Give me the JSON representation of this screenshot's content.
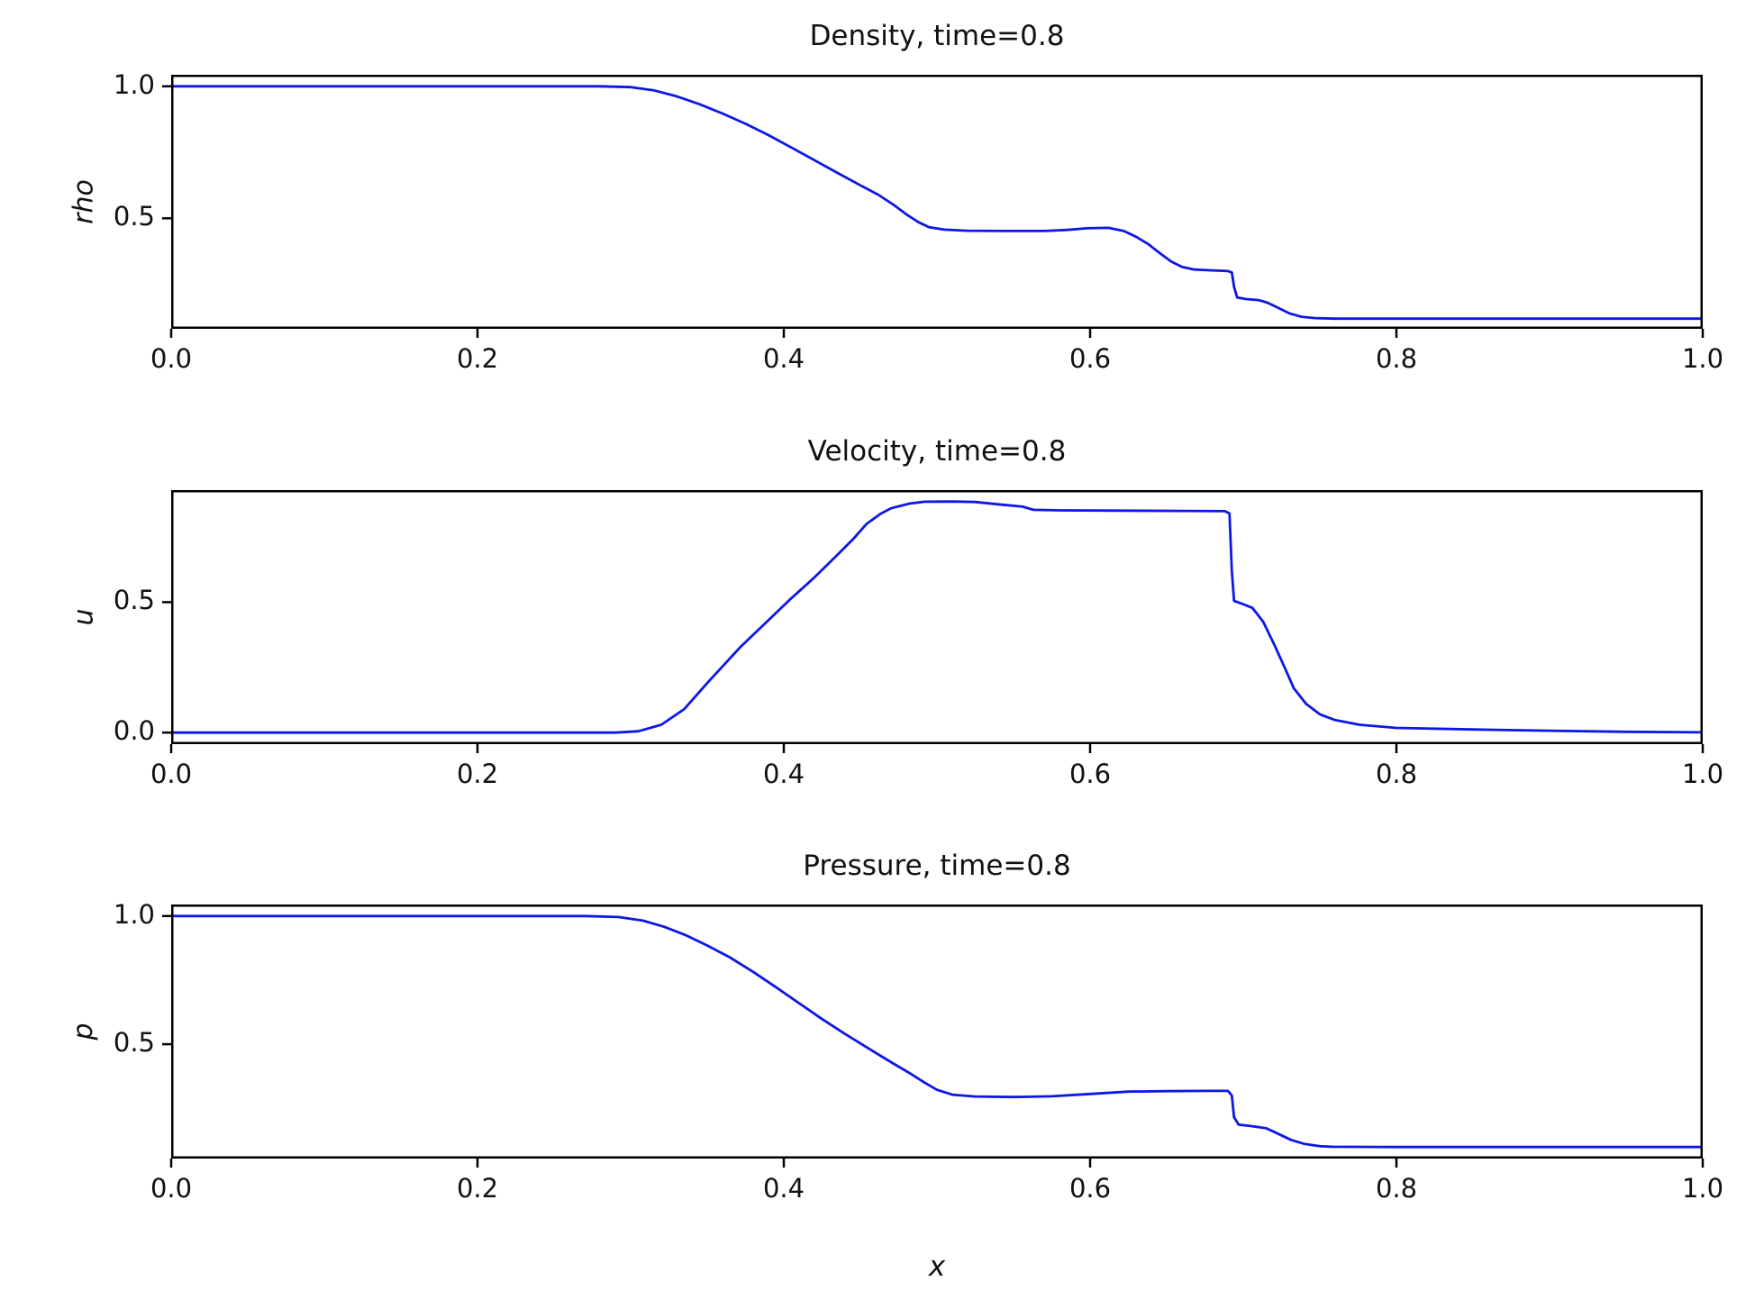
{
  "figure": {
    "background": "#ffffff",
    "line_color": "#0d17e6",
    "axis_color": "#000000",
    "text_color": "#111111"
  },
  "x_axis": {
    "label": "x",
    "xlim": [
      0.0,
      1.0
    ],
    "ticks": [
      {
        "value": 0.0,
        "label": "0.0"
      },
      {
        "value": 0.2,
        "label": "0.2"
      },
      {
        "value": 0.4,
        "label": "0.4"
      },
      {
        "value": 0.6,
        "label": "0.6"
      },
      {
        "value": 0.8,
        "label": "0.8"
      },
      {
        "value": 1.0,
        "label": "1.0"
      }
    ]
  },
  "chart_data": {
    "type": "line",
    "grid": false,
    "legend": null,
    "panels": [
      {
        "title": "Density, time=0.8",
        "ylabel": "rho",
        "ylim": [
          0.0813,
          1.0437
        ],
        "yticks": [
          {
            "value": 1.0,
            "label": "1.0"
          },
          {
            "value": 0.5,
            "label": "0.5"
          }
        ],
        "series": {
          "name": "rho",
          "points": [
            [
              0.0,
              1.0
            ],
            [
              0.15,
              1.0
            ],
            [
              0.28,
              1.0
            ],
            [
              0.3,
              0.997
            ],
            [
              0.315,
              0.985
            ],
            [
              0.33,
              0.962
            ],
            [
              0.345,
              0.932
            ],
            [
              0.36,
              0.897
            ],
            [
              0.375,
              0.858
            ],
            [
              0.39,
              0.815
            ],
            [
              0.405,
              0.768
            ],
            [
              0.42,
              0.72
            ],
            [
              0.435,
              0.672
            ],
            [
              0.45,
              0.625
            ],
            [
              0.462,
              0.588
            ],
            [
              0.472,
              0.55
            ],
            [
              0.48,
              0.515
            ],
            [
              0.488,
              0.485
            ],
            [
              0.495,
              0.466
            ],
            [
              0.505,
              0.457
            ],
            [
              0.52,
              0.453
            ],
            [
              0.545,
              0.452
            ],
            [
              0.57,
              0.452
            ],
            [
              0.585,
              0.456
            ],
            [
              0.598,
              0.462
            ],
            [
              0.612,
              0.464
            ],
            [
              0.622,
              0.452
            ],
            [
              0.63,
              0.43
            ],
            [
              0.638,
              0.402
            ],
            [
              0.646,
              0.366
            ],
            [
              0.653,
              0.336
            ],
            [
              0.66,
              0.316
            ],
            [
              0.668,
              0.306
            ],
            [
              0.678,
              0.303
            ],
            [
              0.69,
              0.3
            ],
            [
              0.6925,
              0.295
            ],
            [
              0.694,
              0.24
            ],
            [
              0.696,
              0.2
            ],
            [
              0.702,
              0.194
            ],
            [
              0.71,
              0.19
            ],
            [
              0.716,
              0.18
            ],
            [
              0.723,
              0.16
            ],
            [
              0.73,
              0.14
            ],
            [
              0.738,
              0.127
            ],
            [
              0.747,
              0.122
            ],
            [
              0.76,
              0.12
            ],
            [
              0.8,
              0.12
            ],
            [
              0.85,
              0.12
            ],
            [
              0.9,
              0.12
            ],
            [
              0.95,
              0.12
            ],
            [
              1.0,
              0.12
            ]
          ]
        }
      },
      {
        "title": "Velocity, time=0.8",
        "ylabel": "u",
        "ylim": [
          -0.0443,
          0.9297
        ],
        "yticks": [
          {
            "value": 0.5,
            "label": "0.5"
          },
          {
            "value": 0.0,
            "label": "0.0"
          }
        ],
        "series": {
          "name": "u",
          "points": [
            [
              0.0,
              0.0
            ],
            [
              0.15,
              0.0
            ],
            [
              0.29,
              0.0
            ],
            [
              0.305,
              0.005
            ],
            [
              0.32,
              0.03
            ],
            [
              0.335,
              0.09
            ],
            [
              0.35,
              0.19
            ],
            [
              0.372,
              0.33
            ],
            [
              0.388,
              0.42
            ],
            [
              0.404,
              0.51
            ],
            [
              0.42,
              0.595
            ],
            [
              0.433,
              0.67
            ],
            [
              0.445,
              0.74
            ],
            [
              0.454,
              0.8
            ],
            [
              0.463,
              0.838
            ],
            [
              0.47,
              0.86
            ],
            [
              0.482,
              0.878
            ],
            [
              0.492,
              0.885
            ],
            [
              0.51,
              0.886
            ],
            [
              0.525,
              0.884
            ],
            [
              0.54,
              0.875
            ],
            [
              0.556,
              0.866
            ],
            [
              0.563,
              0.854
            ],
            [
              0.58,
              0.852
            ],
            [
              0.62,
              0.851
            ],
            [
              0.66,
              0.85
            ],
            [
              0.688,
              0.849
            ],
            [
              0.691,
              0.84
            ],
            [
              0.6925,
              0.62
            ],
            [
              0.694,
              0.505
            ],
            [
              0.7,
              0.492
            ],
            [
              0.706,
              0.478
            ],
            [
              0.713,
              0.425
            ],
            [
              0.72,
              0.34
            ],
            [
              0.727,
              0.25
            ],
            [
              0.733,
              0.17
            ],
            [
              0.741,
              0.11
            ],
            [
              0.75,
              0.07
            ],
            [
              0.76,
              0.048
            ],
            [
              0.776,
              0.03
            ],
            [
              0.8,
              0.018
            ],
            [
              0.85,
              0.012
            ],
            [
              0.9,
              0.007
            ],
            [
              0.95,
              0.003
            ],
            [
              1.0,
              0.001
            ]
          ]
        }
      },
      {
        "title": "Pressure, time=0.8",
        "ylabel": "p",
        "ylim": [
          0.054,
          1.045
        ],
        "yticks": [
          {
            "value": 1.0,
            "label": "1.0"
          },
          {
            "value": 0.5,
            "label": "0.5"
          }
        ],
        "series": {
          "name": "p",
          "points": [
            [
              0.0,
              1.0
            ],
            [
              0.15,
              1.0
            ],
            [
              0.27,
              1.0
            ],
            [
              0.292,
              0.996
            ],
            [
              0.308,
              0.982
            ],
            [
              0.322,
              0.958
            ],
            [
              0.336,
              0.925
            ],
            [
              0.35,
              0.885
            ],
            [
              0.365,
              0.838
            ],
            [
              0.38,
              0.782
            ],
            [
              0.395,
              0.722
            ],
            [
              0.41,
              0.66
            ],
            [
              0.425,
              0.598
            ],
            [
              0.44,
              0.54
            ],
            [
              0.455,
              0.485
            ],
            [
              0.47,
              0.43
            ],
            [
              0.482,
              0.388
            ],
            [
              0.492,
              0.35
            ],
            [
              0.5,
              0.322
            ],
            [
              0.51,
              0.303
            ],
            [
              0.525,
              0.296
            ],
            [
              0.55,
              0.294
            ],
            [
              0.575,
              0.297
            ],
            [
              0.6,
              0.306
            ],
            [
              0.625,
              0.315
            ],
            [
              0.65,
              0.317
            ],
            [
              0.675,
              0.318
            ],
            [
              0.69,
              0.318
            ],
            [
              0.6925,
              0.3
            ],
            [
              0.694,
              0.215
            ],
            [
              0.697,
              0.186
            ],
            [
              0.706,
              0.18
            ],
            [
              0.715,
              0.172
            ],
            [
              0.723,
              0.15
            ],
            [
              0.731,
              0.127
            ],
            [
              0.74,
              0.111
            ],
            [
              0.75,
              0.102
            ],
            [
              0.758,
              0.1
            ],
            [
              0.8,
              0.099
            ],
            [
              0.85,
              0.099
            ],
            [
              0.9,
              0.099
            ],
            [
              0.95,
              0.099
            ],
            [
              1.0,
              0.099
            ]
          ]
        }
      }
    ]
  }
}
